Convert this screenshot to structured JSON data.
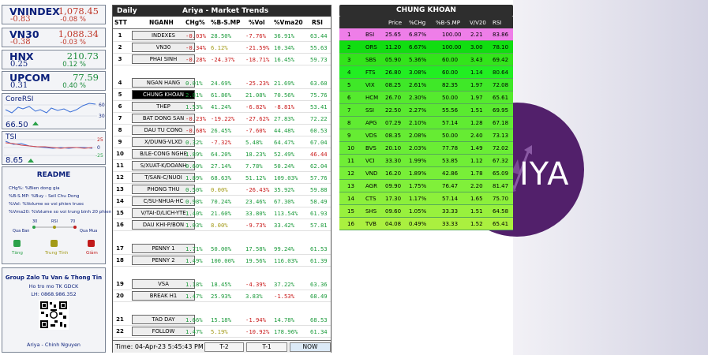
{
  "indexes": [
    {
      "name": "VNINDEX",
      "value": "1,078.45",
      "change": "-0.83",
      "pct": "-0.08 %",
      "color": "#c0392b"
    },
    {
      "name": "VN30",
      "value": "1,088.34",
      "change": "-0.38",
      "pct": "-0.03 %",
      "color": "#c0392b"
    },
    {
      "name": "HNX",
      "value": "210.73",
      "change": "0.25",
      "pct": "0.12 %",
      "color": "#1a8a3a"
    },
    {
      "name": "UPCOM",
      "value": "77.59",
      "change": "0.31",
      "pct": "0.40 %",
      "color": "#1a8a3a"
    }
  ],
  "core_rsi": {
    "title": "CoreRSI",
    "value": "66.50",
    "ticks": [
      "60",
      "30"
    ]
  },
  "tsi": {
    "title": "TSI",
    "value": "8.65",
    "ticks": [
      "25",
      "0",
      "-25"
    ]
  },
  "readme": {
    "title": "README",
    "lines": [
      "CHg%: %Bien dong gia",
      "%B-S.MP: %Buy - Sell Chu Dong",
      "%Vol: %Volume so voi phien truoc",
      "%Vma20: %Volume so voi trung binh 20 phien"
    ],
    "scale": {
      "left": "Qua Ban",
      "right": "Qua Mua",
      "mid": "RSI",
      "t30": "30",
      "t70": "70"
    },
    "lights": [
      {
        "label": "Tăng",
        "color": "#2ca24a"
      },
      {
        "label": "Trung Tính",
        "color": "#a39a17"
      },
      {
        "label": "Giảm",
        "color": "#c11b1b"
      }
    ]
  },
  "group": {
    "title": "Group Zalo Tu Van & Thong Tin",
    "line1": "Ho tro mo TK GDCK",
    "line2": "LH: 0868.986.352",
    "author": "Ariya - Chinh Nguyen"
  },
  "main": {
    "period": "Daily",
    "title": "Ariya -  Market Trends",
    "headers": [
      "STT",
      "NGANH",
      "CHg%",
      "%B-S.MP",
      "%Vol",
      "%Vma20",
      "RSI"
    ],
    "time": "Time: 04-Apr-23 5:45:43 PM",
    "buttons": [
      "T-2",
      "T-1",
      "NOW"
    ],
    "rows": [
      {
        "stt": "1",
        "name": "INDEXES",
        "chg": "-0.03%",
        "bs": "28.50%",
        "vol": "-7.76%",
        "vma": "36.91%",
        "rsi": "63.44"
      },
      {
        "stt": "2",
        "name": "VN30",
        "chg": "-0.34%",
        "bs": "6.12%",
        "vol": "-21.59%",
        "vma": "10.34%",
        "rsi": "55.63"
      },
      {
        "stt": "3",
        "name": "PHAI SINH",
        "chg": "-0.28%",
        "bs": "-24.37%",
        "vol": "-18.71%",
        "vma": "16.45%",
        "rsi": "59.73"
      },
      {
        "stt": "4",
        "name": "NGAN HANG",
        "chg": "0.01%",
        "bs": "24.69%",
        "vol": "-25.23%",
        "vma": "21.69%",
        "rsi": "63.60"
      },
      {
        "stt": "5",
        "name": "CHUNG KHOAN",
        "chg": "2.81%",
        "bs": "61.86%",
        "vol": "21.08%",
        "vma": "70.56%",
        "rsi": "75.76"
      },
      {
        "stt": "6",
        "name": "THEP",
        "chg": "1.53%",
        "bs": "41.24%",
        "vol": "-6.82%",
        "vma": "-8.81%",
        "rsi": "53.41"
      },
      {
        "stt": "7",
        "name": "BAT DONG SAN",
        "chg": "-0.23%",
        "bs": "-19.22%",
        "vol": "-27.62%",
        "vma": "27.83%",
        "rsi": "72.22"
      },
      {
        "stt": "8",
        "name": "DAU TU CONG",
        "chg": "-0.68%",
        "bs": "26.45%",
        "vol": "-7.60%",
        "vma": "44.48%",
        "rsi": "60.53"
      },
      {
        "stt": "9",
        "name": "X/DUNG-VLXD",
        "chg": "0.32%",
        "bs": "-7.32%",
        "vol": "5.48%",
        "vma": "64.47%",
        "rsi": "67.04"
      },
      {
        "stt": "10",
        "name": "B/LE-CONG NGHE",
        "chg": "1.89%",
        "bs": "64.20%",
        "vol": "18.23%",
        "vma": "52.49%",
        "rsi": "46.44"
      },
      {
        "stt": "11",
        "name": "S/XUAT-K/DOANH",
        "chg": "0.60%",
        "bs": "27.14%",
        "vol": "7.78%",
        "vma": "50.24%",
        "rsi": "62.04"
      },
      {
        "stt": "12",
        "name": "T/SAN-C/NUOI",
        "chg": "1.89%",
        "bs": "68.63%",
        "vol": "51.12%",
        "vma": "109.03%",
        "rsi": "57.76"
      },
      {
        "stt": "13",
        "name": "PHONG THU",
        "chg": "0.50%",
        "bs": "0.00%",
        "vol": "-26.43%",
        "vma": "35.92%",
        "rsi": "59.88"
      },
      {
        "stt": "14",
        "name": "C/SU-NHUA-HC",
        "chg": "0.98%",
        "bs": "70.24%",
        "vol": "23.46%",
        "vma": "67.30%",
        "rsi": "58.49"
      },
      {
        "stt": "15",
        "name": "V/TAI-D/LICH-YTE",
        "chg": "1.40%",
        "bs": "21.60%",
        "vol": "33.80%",
        "vma": "113.54%",
        "rsi": "61.93"
      },
      {
        "stt": "16",
        "name": "DAU KHI-P/BON",
        "chg": "1.03%",
        "bs": "8.00%",
        "vol": "-9.73%",
        "vma": "33.42%",
        "rsi": "57.81"
      },
      {
        "stt": "17",
        "name": "PENNY 1",
        "chg": "1.71%",
        "bs": "50.00%",
        "vol": "17.58%",
        "vma": "99.24%",
        "rsi": "61.53"
      },
      {
        "stt": "18",
        "name": "PENNY 2",
        "chg": "1.49%",
        "bs": "100.00%",
        "vol": "19.56%",
        "vma": "116.03%",
        "rsi": "61.39"
      },
      {
        "stt": "19",
        "name": "VSA",
        "chg": "1.18%",
        "bs": "18.45%",
        "vol": "-4.39%",
        "vma": "37.22%",
        "rsi": "63.36"
      },
      {
        "stt": "20",
        "name": "BREAK H1",
        "chg": "1.47%",
        "bs": "25.93%",
        "vol": "3.83%",
        "vma": "-1.53%",
        "rsi": "68.49"
      },
      {
        "stt": "21",
        "name": "TAO DAY",
        "chg": "1.66%",
        "bs": "15.18%",
        "vol": "-1.94%",
        "vma": "14.78%",
        "rsi": "68.53"
      },
      {
        "stt": "22",
        "name": "FOLLOW",
        "chg": "1.47%",
        "bs": "5.19%",
        "vol": "-10.92%",
        "vma": "178.96%",
        "rsi": "61.34"
      }
    ]
  },
  "sector": {
    "title": "CHUNG KHOAN",
    "headers": [
      "",
      "",
      "Price",
      "%CHg",
      "%B-S.MP",
      "V/V20",
      "RSI"
    ],
    "rows": [
      {
        "n": "1",
        "s": "BSI",
        "price": "25.65",
        "chg": "6.87%",
        "bs": "100.00",
        "vv": "2.21",
        "rsi": "83.86",
        "bg": "#ee7ee8"
      },
      {
        "n": "2",
        "s": "ORS",
        "price": "11.20",
        "chg": "6.67%",
        "bs": "100.00",
        "vv": "3.00",
        "rsi": "78.10",
        "bg": "#11dd11"
      },
      {
        "n": "3",
        "s": "SBS",
        "price": "05.90",
        "chg": "5.36%",
        "bs": "60.00",
        "vv": "3.43",
        "rsi": "69.42",
        "bg": "#33e41b"
      },
      {
        "n": "4",
        "s": "FTS",
        "price": "26.80",
        "chg": "3.08%",
        "bs": "60.00",
        "vv": "1.14",
        "rsi": "80.64",
        "bg": "#22ee22"
      },
      {
        "n": "5",
        "s": "VIX",
        "price": "08.25",
        "chg": "2.61%",
        "bs": "82.35",
        "vv": "1.97",
        "rsi": "72.08",
        "bg": "#3fe828"
      },
      {
        "n": "6",
        "s": "HCM",
        "price": "26.70",
        "chg": "2.30%",
        "bs": "50.00",
        "vv": "1.97",
        "rsi": "65.61",
        "bg": "#55ea2e"
      },
      {
        "n": "7",
        "s": "SSI",
        "price": "22.50",
        "chg": "2.27%",
        "bs": "55.56",
        "vv": "1.51",
        "rsi": "69.95",
        "bg": "#5aea30"
      },
      {
        "n": "8",
        "s": "APG",
        "price": "07.29",
        "chg": "2.10%",
        "bs": "57.14",
        "vv": "1.28",
        "rsi": "67.18",
        "bg": "#60eb32"
      },
      {
        "n": "9",
        "s": "VDS",
        "price": "08.35",
        "chg": "2.08%",
        "bs": "50.00",
        "vv": "2.40",
        "rsi": "73.13",
        "bg": "#66ec33"
      },
      {
        "n": "10",
        "s": "BVS",
        "price": "20.10",
        "chg": "2.03%",
        "bs": "77.78",
        "vv": "1.49",
        "rsi": "72.02",
        "bg": "#6aed35"
      },
      {
        "n": "11",
        "s": "VCI",
        "price": "33.30",
        "chg": "1.99%",
        "bs": "53.85",
        "vv": "1.12",
        "rsi": "67.32",
        "bg": "#70ee36"
      },
      {
        "n": "12",
        "s": "VND",
        "price": "16.20",
        "chg": "1.89%",
        "bs": "42.86",
        "vv": "1.78",
        "rsi": "65.09",
        "bg": "#78ef38"
      },
      {
        "n": "13",
        "s": "AGR",
        "price": "09.90",
        "chg": "1.75%",
        "bs": "76.47",
        "vv": "2.20",
        "rsi": "81.47",
        "bg": "#80f03a"
      },
      {
        "n": "14",
        "s": "CTS",
        "price": "17.30",
        "chg": "1.17%",
        "bs": "57.14",
        "vv": "1.65",
        "rsi": "75.70",
        "bg": "#8cf03b"
      },
      {
        "n": "15",
        "s": "SHS",
        "price": "09.60",
        "chg": "1.05%",
        "bs": "33.33",
        "vv": "1.51",
        "rsi": "64.58",
        "bg": "#98f13d"
      },
      {
        "n": "16",
        "s": "TVB",
        "price": "04.08",
        "chg": "0.49%",
        "bs": "33.33",
        "vv": "1.52",
        "rsi": "65.41",
        "bg": "#aaf03f"
      }
    ]
  },
  "logo": {
    "text": "IYA"
  }
}
